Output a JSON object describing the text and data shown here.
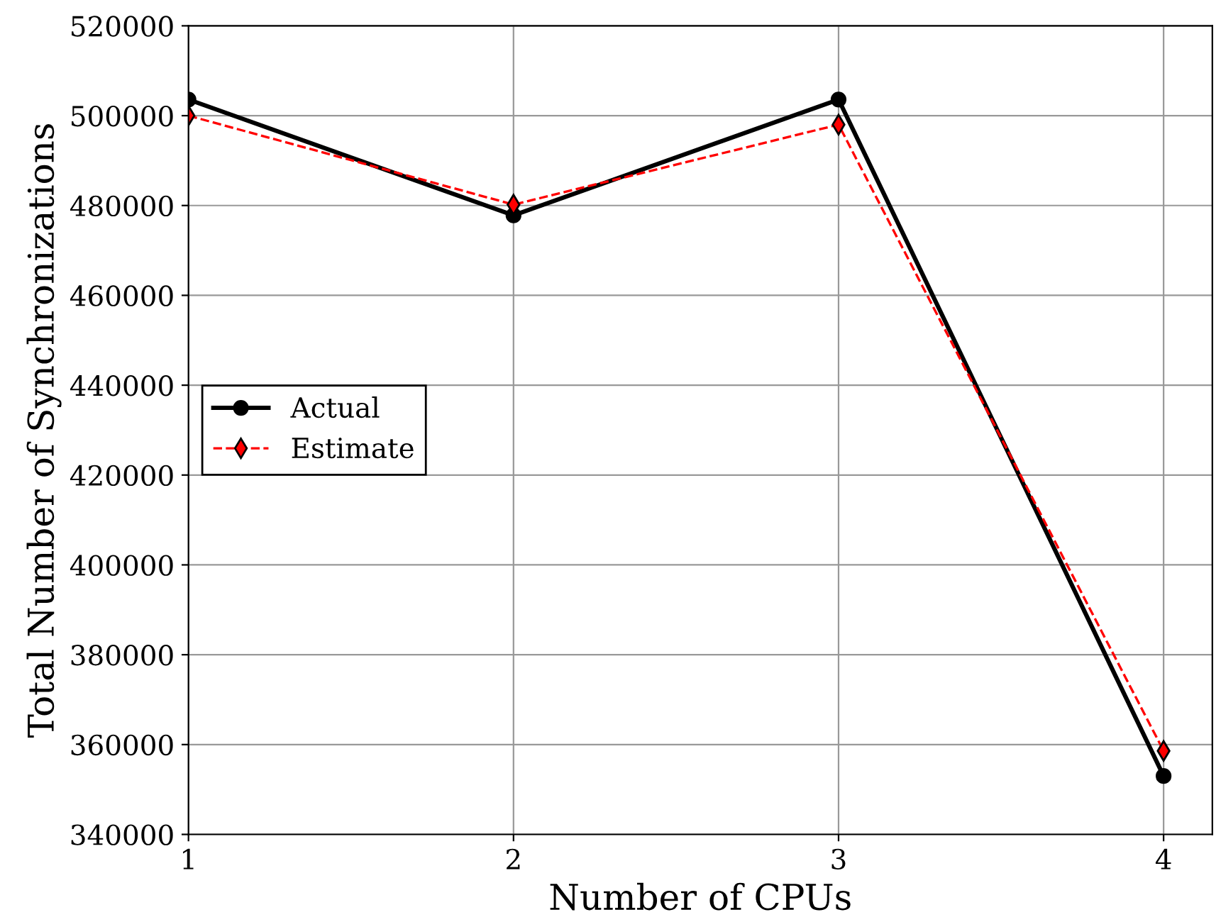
{
  "chart_data": {
    "type": "line",
    "xlabel": "Number of CPUs",
    "ylabel": "Total Number of Synchronizations",
    "x": [
      1,
      2,
      3,
      4
    ],
    "series": [
      {
        "name": "Actual",
        "color": "#000000",
        "values": [
          503600,
          477800,
          503600,
          353000
        ],
        "marker": "circle",
        "line_style": "solid"
      },
      {
        "name": "Estimate",
        "color": "#ff0000",
        "values": [
          500000,
          480200,
          498000,
          358600
        ],
        "marker": "diamond",
        "line_style": "dashed"
      }
    ],
    "xlim": [
      1,
      4.15
    ],
    "xticks": [
      1,
      2,
      3,
      4
    ],
    "ylim": [
      340000,
      520000
    ],
    "yticks": [
      340000,
      360000,
      380000,
      400000,
      420000,
      440000,
      460000,
      480000,
      500000,
      520000
    ],
    "grid": true,
    "legend": "left"
  }
}
